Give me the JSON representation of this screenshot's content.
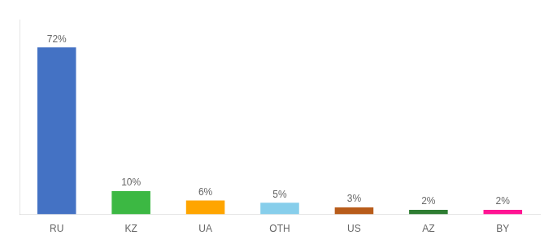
{
  "chart_data": {
    "type": "bar",
    "categories": [
      "RU",
      "KZ",
      "UA",
      "OTH",
      "US",
      "AZ",
      "BY"
    ],
    "values": [
      72,
      10,
      6,
      5,
      3,
      2,
      2
    ],
    "value_labels": [
      "72%",
      "10%",
      "6%",
      "5%",
      "3%",
      "2%",
      "2%"
    ],
    "data_labels": true,
    "colors": [
      "#4472C4",
      "#3CB843",
      "#FFA500",
      "#87CEEB",
      "#B85C1A",
      "#2E7D32",
      "#FF1493"
    ],
    "ylim": [
      0,
      84
    ],
    "grid": false,
    "tick_labels": "x"
  }
}
